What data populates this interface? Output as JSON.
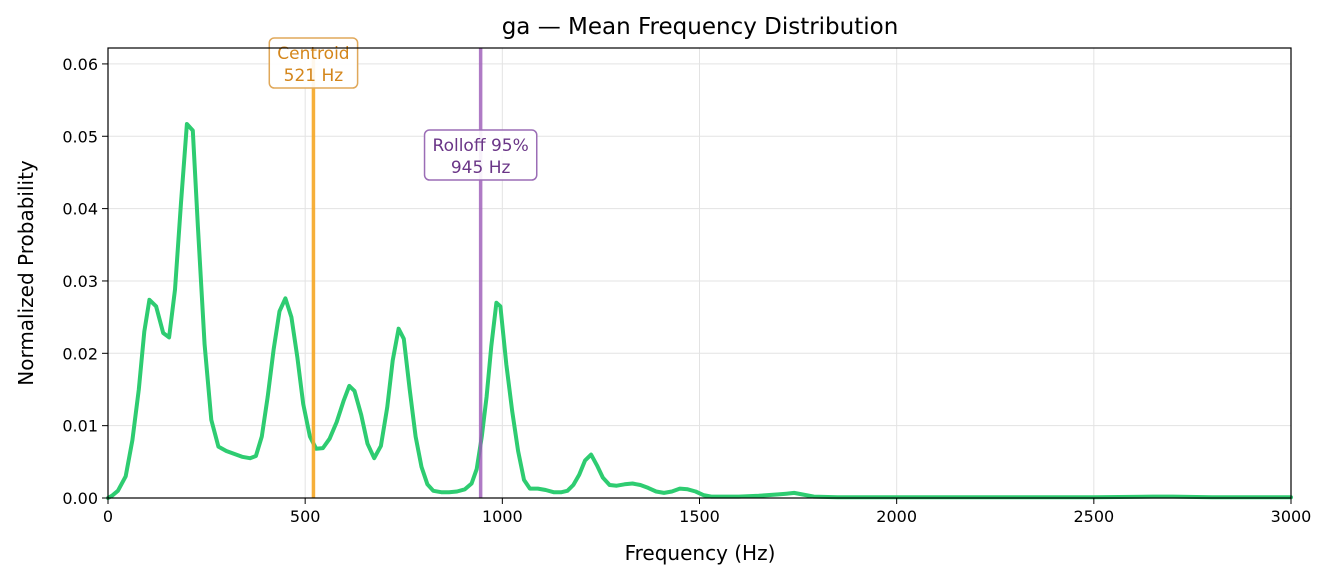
{
  "chart_data": {
    "type": "line",
    "title": "ga  —  Mean Frequency Distribution",
    "xlabel": "Frequency (Hz)",
    "ylabel": "Normalized Probability",
    "xlim": [
      0,
      3000
    ],
    "ylim": [
      0,
      0.0622
    ],
    "xticks": [
      0,
      500,
      1000,
      1500,
      2000,
      2500,
      3000
    ],
    "xtick_labels": [
      "0",
      "500",
      "1000",
      "1500",
      "2000",
      "2500",
      "3000"
    ],
    "yticks": [
      0,
      0.01,
      0.02,
      0.03,
      0.04,
      0.05,
      0.06
    ],
    "ytick_labels": [
      "0.00",
      "0.01",
      "0.02",
      "0.03",
      "0.04",
      "0.05",
      "0.06"
    ],
    "grid": true,
    "series": [
      {
        "color": "#2ecc71",
        "x": [
          0,
          10,
          25,
          45,
          62,
          78,
          92,
          105,
          122,
          140,
          155,
          170,
          185,
          200,
          215,
          228,
          245,
          262,
          280,
          300,
          320,
          340,
          360,
          375,
          390,
          405,
          420,
          435,
          450,
          465,
          480,
          495,
          512,
          528,
          545,
          562,
          580,
          598,
          612,
          625,
          642,
          658,
          675,
          692,
          708,
          722,
          737,
          750,
          765,
          780,
          795,
          810,
          825,
          845,
          865,
          885,
          905,
          922,
          935,
          948,
          960,
          972,
          985,
          995,
          1010,
          1025,
          1040,
          1055,
          1070,
          1090,
          1110,
          1130,
          1150,
          1165,
          1180,
          1195,
          1210,
          1225,
          1240,
          1255,
          1272,
          1290,
          1310,
          1330,
          1350,
          1370,
          1390,
          1410,
          1430,
          1450,
          1470,
          1490,
          1510,
          1530,
          1560,
          1600,
          1650,
          1700,
          1720,
          1740,
          1760,
          1790,
          1850,
          2000,
          2500,
          2650,
          2700,
          2800,
          3000
        ],
        "y": [
          0.0,
          0.0003,
          0.001,
          0.003,
          0.008,
          0.015,
          0.023,
          0.0274,
          0.0265,
          0.0228,
          0.0222,
          0.0288,
          0.0408,
          0.0517,
          0.0508,
          0.0375,
          0.0212,
          0.0108,
          0.0071,
          0.0065,
          0.0061,
          0.0057,
          0.0055,
          0.0058,
          0.0085,
          0.014,
          0.0205,
          0.0258,
          0.0276,
          0.025,
          0.0195,
          0.013,
          0.0085,
          0.0068,
          0.0069,
          0.0082,
          0.0105,
          0.0135,
          0.0155,
          0.0148,
          0.0115,
          0.0075,
          0.0055,
          0.0072,
          0.0125,
          0.019,
          0.0234,
          0.022,
          0.015,
          0.0085,
          0.0043,
          0.0019,
          0.001,
          0.0008,
          0.0008,
          0.0009,
          0.0012,
          0.002,
          0.004,
          0.0085,
          0.014,
          0.021,
          0.027,
          0.0265,
          0.0185,
          0.012,
          0.0065,
          0.0025,
          0.0013,
          0.0013,
          0.0011,
          0.0008,
          0.0008,
          0.001,
          0.0018,
          0.0032,
          0.0052,
          0.006,
          0.0045,
          0.0028,
          0.0018,
          0.0017,
          0.0019,
          0.002,
          0.0018,
          0.0014,
          0.0009,
          0.0007,
          0.0009,
          0.0013,
          0.0012,
          0.0009,
          0.0004,
          0.0002,
          0.0002,
          0.0002,
          0.0003,
          0.0005,
          0.0006,
          0.0007,
          0.0005,
          0.0002,
          0.0001,
          0.0001,
          0.0001,
          0.0002,
          0.0002,
          0.0001,
          0.0001
        ]
      }
    ],
    "vlines": [
      {
        "x": 521,
        "color": "#f5a623",
        "label": "Centroid",
        "value": "521 Hz",
        "text_color": "#d4861b",
        "box_color": "#e0a85a"
      },
      {
        "x": 945,
        "color": "#9b59b6",
        "label": "Rolloff 95%",
        "value": "945 Hz",
        "text_color": "#6a3587",
        "box_color": "#9b6db6"
      }
    ]
  }
}
